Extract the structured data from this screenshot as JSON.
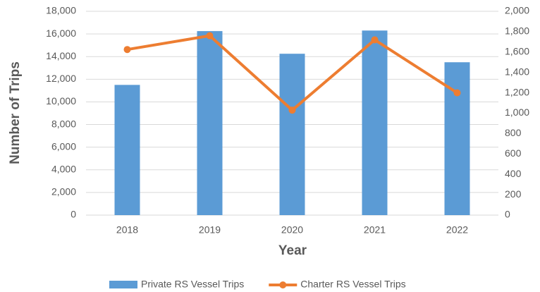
{
  "chart_data": {
    "type": "bar_line",
    "categories": [
      "2018",
      "2019",
      "2020",
      "2021",
      "2022"
    ],
    "xlabel": "Year",
    "ylabel": "Number of Trips",
    "series": [
      {
        "name": "Private RS Vessel Trips",
        "type": "bar",
        "color": "#5b9bd5",
        "values": [
          11500,
          16250,
          14250,
          16300,
          13500
        ]
      },
      {
        "name": "Charter RS Vessel Trips",
        "type": "line",
        "color": "#ed7d31",
        "axis": "y2",
        "values": [
          1625,
          1760,
          1030,
          1720,
          1200
        ]
      }
    ],
    "ylim": [
      0,
      18000
    ],
    "yticks": [
      0,
      {
        "value": 2000,
        "label": "2,000"
      },
      {
        "value": 4000,
        "label": "4,000"
      },
      {
        "value": 6000,
        "label": "6,000"
      },
      {
        "value": 8000,
        "label": "8,000"
      },
      {
        "value": 10000,
        "label": "10,000"
      },
      {
        "value": 12000,
        "label": "12,000"
      },
      {
        "value": 14000,
        "label": "14,000"
      },
      {
        "value": 16000,
        "label": "16,000"
      },
      {
        "value": 18000,
        "label": "18,000"
      }
    ],
    "y2lim": [
      0,
      2000
    ],
    "y2ticks": [
      0,
      200,
      400,
      600,
      800,
      {
        "value": 1000,
        "label": "1,000"
      },
      {
        "value": 1200,
        "label": "1,200"
      },
      {
        "value": 1400,
        "label": "1,400"
      },
      {
        "value": 1600,
        "label": "1,600"
      },
      {
        "value": 1800,
        "label": "1,800"
      },
      {
        "value": 2000,
        "label": "2,000"
      }
    ],
    "grid": true,
    "legend": "bottom"
  }
}
